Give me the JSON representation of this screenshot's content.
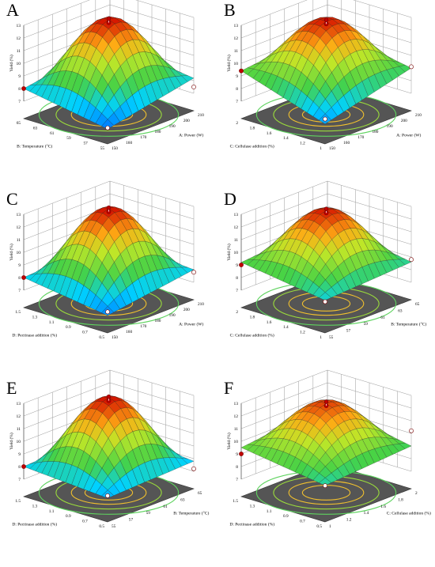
{
  "chart_data": [
    {
      "panel": "A",
      "type": "surface",
      "zlabel": "Yield (%)",
      "zticks": [
        "7",
        "8",
        "9",
        "10",
        "11",
        "12",
        "13"
      ],
      "xlabel": "A: Power (W)",
      "xticks": [
        "150",
        "160",
        "170",
        "180",
        "190",
        "200",
        "210"
      ],
      "ylabel": "B: Temperature (°C)",
      "yticks": [
        "55",
        "57",
        "59",
        "61",
        "63",
        "65"
      ],
      "peak": 12.9,
      "corners": [
        6.8,
        8.2,
        8.0,
        9.1
      ],
      "design_points": [
        12.9,
        7.5,
        8.0,
        6.8
      ]
    },
    {
      "panel": "B",
      "type": "surface",
      "zlabel": "Yield (%)",
      "zticks": [
        "7",
        "8",
        "9",
        "10",
        "11",
        "12",
        "13"
      ],
      "xlabel": "A: Power (W)",
      "xticks": [
        "150",
        "160",
        "170",
        "180",
        "190",
        "200",
        "210"
      ],
      "ylabel": "C: Cellulase addition (%)",
      "yticks": [
        "1",
        "1.2",
        "1.4",
        "1.6",
        "1.8",
        "2"
      ],
      "peak": 12.8,
      "corners": [
        7.2,
        9.0,
        9.4,
        10.2
      ],
      "design_points": [
        12.8,
        9.1,
        9.4,
        7.5
      ]
    },
    {
      "panel": "C",
      "type": "surface",
      "zlabel": "Yield (%)",
      "zticks": [
        "7",
        "8",
        "9",
        "10",
        "11",
        "12",
        "13"
      ],
      "xlabel": "A: Power (W)",
      "xticks": [
        "150",
        "160",
        "170",
        "180",
        "190",
        "200",
        "210"
      ],
      "ylabel": "D: Pectinase addition (%)",
      "yticks": [
        "0.5",
        "0.7",
        "0.9",
        "1.1",
        "1.3",
        "1.5"
      ],
      "peak": 12.9,
      "corners": [
        7.0,
        8.0,
        8.0,
        8.5
      ],
      "design_points": [
        12.9,
        7.8,
        8.0,
        7.2
      ]
    },
    {
      "panel": "D",
      "type": "surface",
      "zlabel": "Yield (%)",
      "zticks": [
        "7",
        "8",
        "9",
        "10",
        "11",
        "12",
        "13"
      ],
      "xlabel": "B: Temperature (°C)",
      "xticks": [
        "55",
        "57",
        "59",
        "61",
        "63",
        "65"
      ],
      "ylabel": "C: Cellulase addition (%)",
      "yticks": [
        "1",
        "1.2",
        "1.4",
        "1.6",
        "1.8",
        "2"
      ],
      "peak": 12.8,
      "corners": [
        8.2,
        8.6,
        9.2,
        9.8
      ],
      "design_points": [
        12.8,
        8.8,
        9.0,
        8.0
      ]
    },
    {
      "panel": "E",
      "type": "surface",
      "zlabel": "Yield (%)",
      "zticks": [
        "7",
        "8",
        "9",
        "10",
        "11",
        "12",
        "13"
      ],
      "xlabel": "B: Temperature (°C)",
      "xticks": [
        "55",
        "57",
        "59",
        "61",
        "63",
        "65"
      ],
      "ylabel": "D: Pectinase addition (%)",
      "yticks": [
        "0.5",
        "0.7",
        "0.9",
        "1.1",
        "1.3",
        "1.5"
      ],
      "peak": 12.9,
      "corners": [
        7.5,
        7.8,
        8.0,
        8.4
      ],
      "design_points": [
        12.9,
        7.2,
        8.0,
        7.6
      ]
    },
    {
      "panel": "F",
      "type": "surface",
      "zlabel": "Yield (%)",
      "zticks": [
        "7",
        "8",
        "9",
        "10",
        "11",
        "12",
        "13"
      ],
      "xlabel": "C: Cellulase addition (%)",
      "xticks": [
        "1",
        "1.2",
        "1.4",
        "1.6",
        "1.8",
        "2"
      ],
      "ylabel": "D: Pectinase addition (%)",
      "yticks": [
        "0.5",
        "0.7",
        "0.9",
        "1.1",
        "1.3",
        "1.5"
      ],
      "peak": 12.5,
      "corners": [
        8.5,
        9.0,
        9.5,
        10.3
      ],
      "design_points": [
        12.5,
        10.2,
        9.0,
        8.4
      ]
    }
  ],
  "colors": {
    "low": "#00bfff",
    "mid": "#4fd24f",
    "high": "#e02000",
    "floor": "#555555",
    "contour": "#f2c12e",
    "point": "#d10000"
  }
}
